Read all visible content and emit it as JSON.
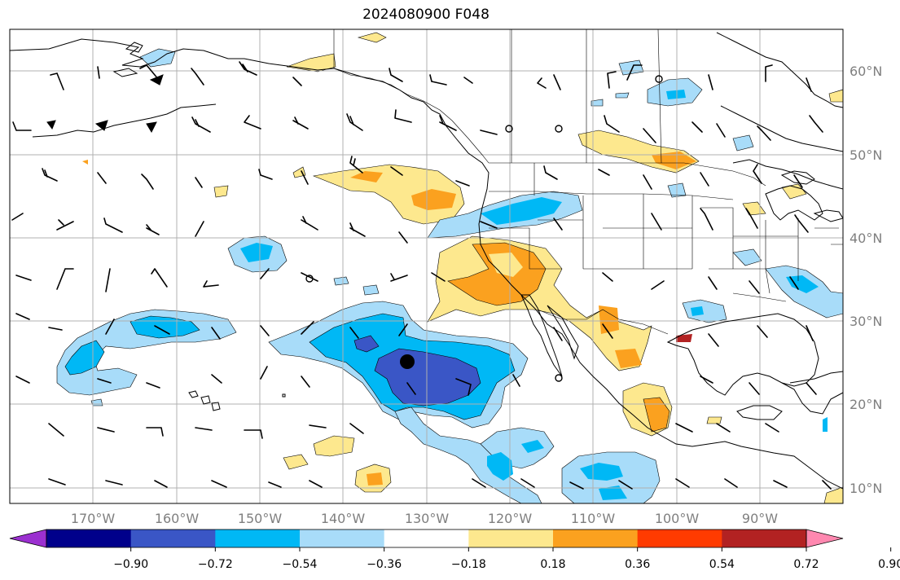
{
  "title": "2024080900 F048",
  "longitude_labels": [
    "170°W",
    "160°W",
    "150°W",
    "140°W",
    "130°W",
    "120°W",
    "110°W",
    "100°W",
    "90°W"
  ],
  "latitude_labels": [
    "60°N",
    "50°N",
    "40°N",
    "30°N",
    "20°N",
    "10°N"
  ],
  "colorbar": {
    "colors": [
      "#9b30d0",
      "#00008b",
      "#3a56c6",
      "#00b8f5",
      "#a8dcf9",
      "#ffffff",
      "#fde88e",
      "#fba11f",
      "#ff3b00",
      "#b22222",
      "#ff88b0"
    ],
    "tick_labels": [
      "−0.90",
      "−0.72",
      "−0.54",
      "−0.36",
      "−0.18",
      "0.18",
      "0.36",
      "0.54",
      "0.72",
      "0.90"
    ]
  },
  "marker": {
    "label": "storm-center"
  }
}
